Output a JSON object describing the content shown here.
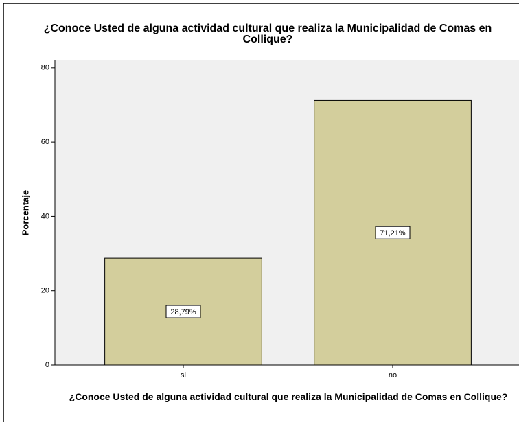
{
  "chart_data": {
    "type": "bar",
    "title": "¿Conoce Usted de alguna actividad cultural que realiza la Municipalidad de Comas en Collique?",
    "x_label": "¿Conoce Usted de alguna actividad cultural que realiza la Municipalidad de Comas en Collique?",
    "y_label": "Porcentaje",
    "categories": [
      "si",
      "no"
    ],
    "values": [
      28.79,
      71.21
    ],
    "value_labels": [
      "28,79%",
      "71,21%"
    ],
    "color": "#d3ce9c",
    "ylim": [
      0,
      82
    ],
    "yticks": [
      0,
      20,
      40,
      60,
      80
    ]
  }
}
